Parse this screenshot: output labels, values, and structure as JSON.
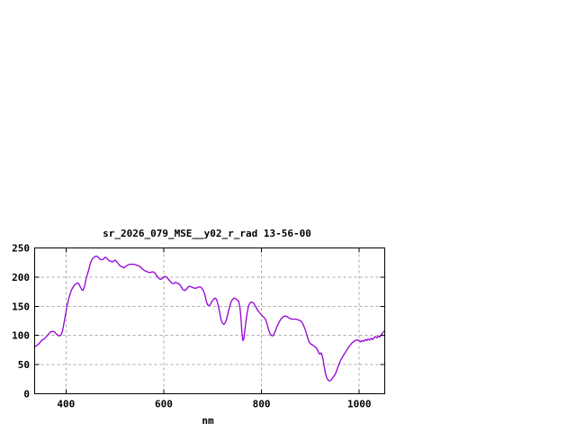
{
  "chart_data": {
    "type": "line",
    "title": "sr_2026_079_MSE__y02_r_rad 13-56-00",
    "xlabel": "nm",
    "ylabel": "",
    "xlim": [
      336,
      1052
    ],
    "ylim": [
      0,
      250
    ],
    "x_ticks": [
      400,
      600,
      800,
      1000
    ],
    "y_ticks": [
      0,
      50,
      100,
      150,
      200,
      250
    ],
    "grid": "dashed, both axes, at major ticks",
    "legend": "none",
    "background_color": "#ffffff",
    "axis_color": "#000000",
    "grid_color": "#a8a8a8",
    "series": [
      {
        "name": "sr_2026_079_MSE__y02_r_rad",
        "color": "#9400d3",
        "points": [
          [
            336,
            81
          ],
          [
            339,
            82
          ],
          [
            342,
            84
          ],
          [
            345,
            86
          ],
          [
            348,
            89
          ],
          [
            351,
            92
          ],
          [
            354,
            93
          ],
          [
            357,
            95
          ],
          [
            360,
            98
          ],
          [
            363,
            101
          ],
          [
            366,
            104
          ],
          [
            369,
            106
          ],
          [
            372,
            107
          ],
          [
            375,
            107
          ],
          [
            378,
            105
          ],
          [
            381,
            102
          ],
          [
            384,
            100
          ],
          [
            387,
            99
          ],
          [
            390,
            101
          ],
          [
            393,
            108
          ],
          [
            396,
            121
          ],
          [
            399,
            135
          ],
          [
            402,
            150
          ],
          [
            405,
            161
          ],
          [
            408,
            170
          ],
          [
            411,
            177
          ],
          [
            414,
            182
          ],
          [
            417,
            186
          ],
          [
            420,
            188
          ],
          [
            423,
            190
          ],
          [
            426,
            189
          ],
          [
            429,
            184
          ],
          [
            432,
            179
          ],
          [
            435,
            177
          ],
          [
            438,
            184
          ],
          [
            441,
            196
          ],
          [
            444,
            205
          ],
          [
            447,
            214
          ],
          [
            450,
            224
          ],
          [
            453,
            230
          ],
          [
            456,
            233
          ],
          [
            459,
            235
          ],
          [
            462,
            236
          ],
          [
            465,
            235
          ],
          [
            468,
            232
          ],
          [
            471,
            230
          ],
          [
            474,
            230
          ],
          [
            477,
            231
          ],
          [
            480,
            234
          ],
          [
            483,
            233
          ],
          [
            486,
            230
          ],
          [
            489,
            228
          ],
          [
            492,
            227
          ],
          [
            495,
            226
          ],
          [
            498,
            228
          ],
          [
            501,
            229
          ],
          [
            504,
            226
          ],
          [
            507,
            223
          ],
          [
            510,
            220
          ],
          [
            513,
            218
          ],
          [
            516,
            217
          ],
          [
            519,
            216
          ],
          [
            522,
            218
          ],
          [
            525,
            220
          ],
          [
            528,
            221
          ],
          [
            531,
            222
          ],
          [
            534,
            222
          ],
          [
            537,
            222
          ],
          [
            540,
            222
          ],
          [
            543,
            221
          ],
          [
            546,
            220
          ],
          [
            549,
            219
          ],
          [
            552,
            218
          ],
          [
            555,
            215
          ],
          [
            558,
            213
          ],
          [
            561,
            211
          ],
          [
            564,
            210
          ],
          [
            567,
            209
          ],
          [
            570,
            208
          ],
          [
            573,
            208
          ],
          [
            576,
            209
          ],
          [
            579,
            209
          ],
          [
            582,
            207
          ],
          [
            585,
            203
          ],
          [
            588,
            200
          ],
          [
            591,
            197
          ],
          [
            594,
            196
          ],
          [
            597,
            198
          ],
          [
            600,
            200
          ],
          [
            603,
            201
          ],
          [
            606,
            200
          ],
          [
            609,
            197
          ],
          [
            612,
            194
          ],
          [
            615,
            191
          ],
          [
            618,
            189
          ],
          [
            621,
            189
          ],
          [
            624,
            191
          ],
          [
            627,
            190
          ],
          [
            630,
            189
          ],
          [
            633,
            187
          ],
          [
            636,
            183
          ],
          [
            639,
            179
          ],
          [
            642,
            177
          ],
          [
            645,
            178
          ],
          [
            648,
            181
          ],
          [
            651,
            184
          ],
          [
            654,
            184
          ],
          [
            657,
            183
          ],
          [
            660,
            182
          ],
          [
            663,
            181
          ],
          [
            666,
            181
          ],
          [
            669,
            182
          ],
          [
            672,
            183
          ],
          [
            675,
            183
          ],
          [
            678,
            181
          ],
          [
            681,
            177
          ],
          [
            684,
            170
          ],
          [
            687,
            159
          ],
          [
            690,
            152
          ],
          [
            693,
            151
          ],
          [
            696,
            154
          ],
          [
            699,
            159
          ],
          [
            702,
            162
          ],
          [
            705,
            164
          ],
          [
            708,
            162
          ],
          [
            711,
            153
          ],
          [
            714,
            141
          ],
          [
            717,
            128
          ],
          [
            720,
            121
          ],
          [
            723,
            119
          ],
          [
            726,
            122
          ],
          [
            729,
            129
          ],
          [
            732,
            140
          ],
          [
            735,
            150
          ],
          [
            738,
            158
          ],
          [
            741,
            162
          ],
          [
            744,
            164
          ],
          [
            747,
            163
          ],
          [
            750,
            161
          ],
          [
            753,
            159
          ],
          [
            756,
            147
          ],
          [
            758,
            128
          ],
          [
            760,
            103
          ],
          [
            762,
            91
          ],
          [
            764,
            95
          ],
          [
            766,
            110
          ],
          [
            768,
            123
          ],
          [
            770,
            135
          ],
          [
            772,
            145
          ],
          [
            774,
            152
          ],
          [
            776,
            155
          ],
          [
            778,
            157
          ],
          [
            781,
            157
          ],
          [
            784,
            155
          ],
          [
            787,
            151
          ],
          [
            790,
            146
          ],
          [
            793,
            142
          ],
          [
            796,
            139
          ],
          [
            799,
            136
          ],
          [
            802,
            133
          ],
          [
            805,
            131
          ],
          [
            808,
            128
          ],
          [
            811,
            121
          ],
          [
            814,
            111
          ],
          [
            817,
            104
          ],
          [
            820,
            100
          ],
          [
            823,
            99
          ],
          [
            826,
            103
          ],
          [
            829,
            109
          ],
          [
            832,
            116
          ],
          [
            835,
            121
          ],
          [
            838,
            126
          ],
          [
            841,
            129
          ],
          [
            844,
            132
          ],
          [
            847,
            133
          ],
          [
            850,
            133
          ],
          [
            853,
            132
          ],
          [
            856,
            130
          ],
          [
            859,
            129
          ],
          [
            862,
            128
          ],
          [
            865,
            128
          ],
          [
            868,
            128
          ],
          [
            871,
            128
          ],
          [
            874,
            127
          ],
          [
            877,
            126
          ],
          [
            880,
            125
          ],
          [
            883,
            122
          ],
          [
            886,
            117
          ],
          [
            889,
            111
          ],
          [
            892,
            103
          ],
          [
            895,
            94
          ],
          [
            898,
            88
          ],
          [
            901,
            85
          ],
          [
            904,
            84
          ],
          [
            907,
            82
          ],
          [
            910,
            80
          ],
          [
            913,
            78
          ],
          [
            916,
            72
          ],
          [
            919,
            68
          ],
          [
            922,
            70
          ],
          [
            925,
            63
          ],
          [
            928,
            48
          ],
          [
            931,
            34
          ],
          [
            934,
            26
          ],
          [
            937,
            23
          ],
          [
            940,
            22
          ],
          [
            943,
            24
          ],
          [
            946,
            28
          ],
          [
            949,
            31
          ],
          [
            952,
            36
          ],
          [
            955,
            43
          ],
          [
            958,
            50
          ],
          [
            961,
            56
          ],
          [
            964,
            61
          ],
          [
            967,
            65
          ],
          [
            970,
            69
          ],
          [
            973,
            73
          ],
          [
            976,
            77
          ],
          [
            979,
            81
          ],
          [
            982,
            84
          ],
          [
            985,
            87
          ],
          [
            988,
            89
          ],
          [
            991,
            91
          ],
          [
            994,
            92
          ],
          [
            997,
            92
          ],
          [
            1000,
            91
          ],
          [
            1003,
            89
          ],
          [
            1006,
            91
          ],
          [
            1009,
            90
          ],
          [
            1012,
            93
          ],
          [
            1015,
            91
          ],
          [
            1018,
            94
          ],
          [
            1021,
            92
          ],
          [
            1024,
            95
          ],
          [
            1027,
            93
          ],
          [
            1030,
            96
          ],
          [
            1033,
            98
          ],
          [
            1036,
            96
          ],
          [
            1039,
            99
          ],
          [
            1042,
            97
          ],
          [
            1045,
            102
          ],
          [
            1048,
            104
          ],
          [
            1050,
            107
          ]
        ]
      }
    ]
  }
}
